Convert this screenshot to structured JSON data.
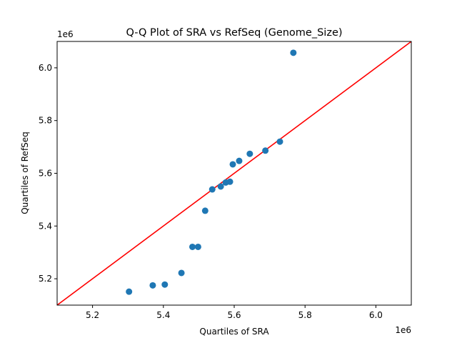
{
  "chart_data": {
    "type": "scatter",
    "title": "Q-Q Plot of SRA vs RefSeq (Genome_Size)",
    "xlabel": "Quartiles of SRA",
    "ylabel": "Quartiles of RefSeq",
    "x_offset_label": "1e6",
    "y_offset_label": "1e6",
    "xlim": [
      5.1,
      6.1
    ],
    "ylim": [
      5.1,
      6.1
    ],
    "x_ticks": [
      5.2,
      5.4,
      5.6,
      5.8,
      6.0
    ],
    "y_ticks": [
      5.2,
      5.4,
      5.6,
      5.8,
      6.0
    ],
    "x_tick_labels": [
      "5.2",
      "5.4",
      "5.6",
      "5.8",
      "6.0"
    ],
    "y_tick_labels": [
      "5.2",
      "5.4",
      "5.6",
      "5.8",
      "6.0"
    ],
    "grid": false,
    "marker_color": "#1f77b4",
    "reference_line": {
      "from": [
        5.1,
        5.1
      ],
      "to": [
        6.1,
        6.1
      ],
      "color": "#ff0000"
    },
    "points": [
      {
        "x": 5.303,
        "y": 5.151
      },
      {
        "x": 5.37,
        "y": 5.175
      },
      {
        "x": 5.404,
        "y": 5.178
      },
      {
        "x": 5.451,
        "y": 5.222
      },
      {
        "x": 5.482,
        "y": 5.321
      },
      {
        "x": 5.498,
        "y": 5.321
      },
      {
        "x": 5.518,
        "y": 5.458
      },
      {
        "x": 5.538,
        "y": 5.539
      },
      {
        "x": 5.562,
        "y": 5.55
      },
      {
        "x": 5.576,
        "y": 5.565
      },
      {
        "x": 5.588,
        "y": 5.568
      },
      {
        "x": 5.596,
        "y": 5.634
      },
      {
        "x": 5.614,
        "y": 5.647
      },
      {
        "x": 5.644,
        "y": 5.674
      },
      {
        "x": 5.688,
        "y": 5.686
      },
      {
        "x": 5.729,
        "y": 5.72
      },
      {
        "x": 5.767,
        "y": 6.057
      }
    ]
  }
}
